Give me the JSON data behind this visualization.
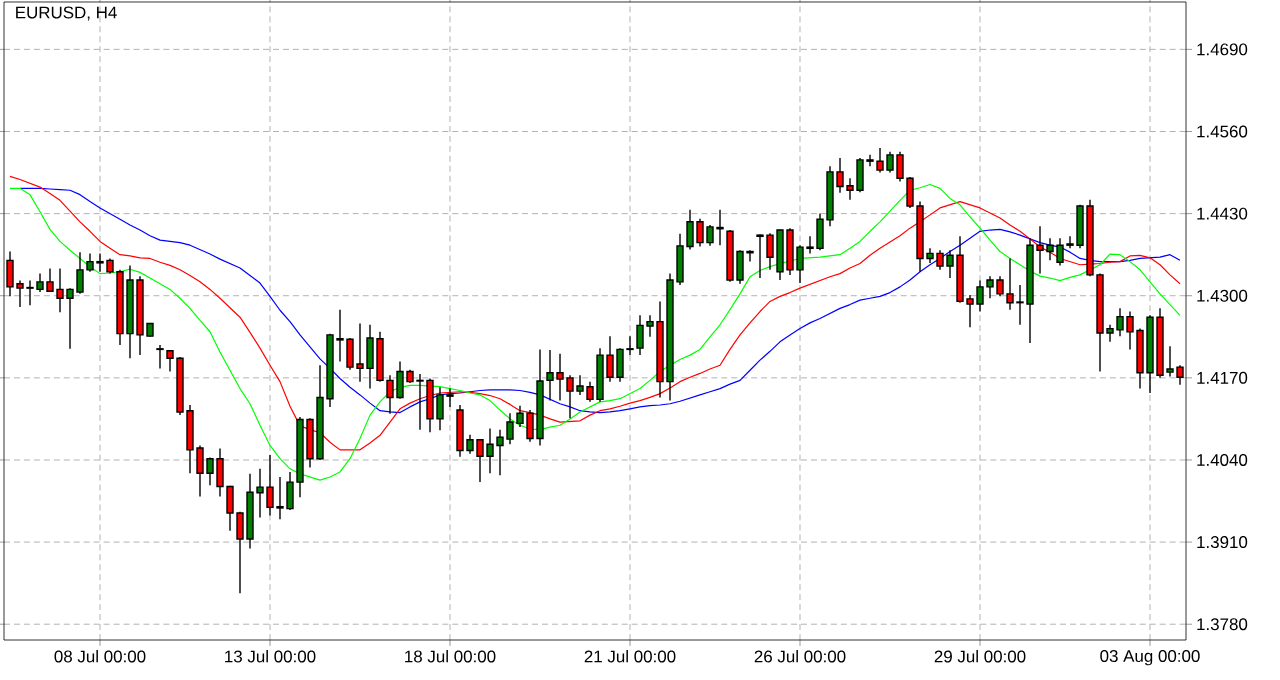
{
  "chart_data": {
    "type": "candlestick",
    "title": "EURUSD, H4",
    "categories": [
      null,
      null,
      null,
      null,
      null,
      null,
      null,
      null,
      null,
      "08 Jul 00:00",
      null,
      null,
      null,
      null,
      null,
      null,
      null,
      null,
      null,
      null,
      null,
      null,
      null,
      null,
      null,
      null,
      "13 Jul 00:00",
      null,
      null,
      null,
      null,
      null,
      null,
      null,
      null,
      null,
      null,
      null,
      null,
      null,
      null,
      null,
      null,
      null,
      "18 Jul 00:00",
      null,
      null,
      null,
      null,
      null,
      null,
      null,
      null,
      null,
      null,
      null,
      null,
      null,
      null,
      null,
      null,
      null,
      "21 Jul 00:00",
      null,
      null,
      null,
      null,
      null,
      null,
      null,
      null,
      null,
      null,
      null,
      null,
      null,
      null,
      null,
      null,
      "26 Jul 00:00",
      null,
      null,
      null,
      null,
      null,
      null,
      null,
      null,
      null,
      null,
      null,
      null,
      null,
      null,
      null,
      null,
      null,
      "29 Jul 00:00",
      null,
      null,
      null,
      null,
      null,
      null,
      null,
      null,
      null,
      null,
      null,
      null,
      null,
      null,
      null,
      null,
      "03 Aug 00:00",
      null,
      null,
      null
    ],
    "ohlc": [
      [
        1.4356,
        1.437,
        1.4299,
        1.4314
      ],
      [
        1.4319,
        1.4324,
        1.4282,
        1.4312
      ],
      [
        1.4312,
        1.4324,
        1.4285,
        1.4313
      ],
      [
        1.431,
        1.4335,
        1.4306,
        1.4322
      ],
      [
        1.4322,
        1.4343,
        1.4306,
        1.4307
      ],
      [
        1.431,
        1.4343,
        1.4274,
        1.4296
      ],
      [
        1.4296,
        1.4312,
        1.4216,
        1.431
      ],
      [
        1.4306,
        1.4369,
        1.4303,
        1.4341
      ],
      [
        1.4341,
        1.4367,
        1.4338,
        1.4354
      ],
      [
        1.4352,
        1.4367,
        1.4338,
        1.4354
      ],
      [
        1.4356,
        1.4359,
        1.4335,
        1.4338
      ],
      [
        1.4338,
        1.4341,
        1.4222,
        1.424
      ],
      [
        1.424,
        1.4348,
        1.4201,
        1.4325
      ],
      [
        1.4325,
        1.4331,
        1.4206,
        1.4238
      ],
      [
        1.4236,
        1.4257,
        1.4235,
        1.4256
      ],
      [
        1.4215,
        1.4222,
        1.4185,
        1.4216
      ],
      [
        1.4213,
        1.4214,
        1.418,
        1.4201
      ],
      [
        1.4201,
        1.4203,
        1.4111,
        1.4116
      ],
      [
        1.4118,
        1.4127,
        1.4019,
        1.4056
      ],
      [
        1.4059,
        1.4063,
        1.3982,
        1.4019
      ],
      [
        1.4019,
        1.4044,
        1.4,
        1.4042
      ],
      [
        1.4042,
        1.4058,
        1.3982,
        1.3998
      ],
      [
        1.3998,
        1.3999,
        1.3928,
        1.3956
      ],
      [
        1.3956,
        1.3958,
        1.3829,
        1.3915
      ],
      [
        1.3915,
        1.4018,
        1.39,
        1.3989
      ],
      [
        1.3988,
        1.4026,
        1.3949,
        1.3997
      ],
      [
        1.3997,
        1.4048,
        1.3952,
        1.3965
      ],
      [
        1.3964,
        1.4013,
        1.3946,
        1.3966
      ],
      [
        1.3963,
        1.4021,
        1.3961,
        1.4005
      ],
      [
        1.4005,
        1.4108,
        1.3981,
        1.4104
      ],
      [
        1.4104,
        1.4106,
        1.4028,
        1.4042
      ],
      [
        1.4042,
        1.419,
        1.404,
        1.4139
      ],
      [
        1.4137,
        1.424,
        1.4124,
        1.4238
      ],
      [
        1.423,
        1.4278,
        1.4196,
        1.4232
      ],
      [
        1.4231,
        1.4233,
        1.4183,
        1.4187
      ],
      [
        1.4192,
        1.4256,
        1.4164,
        1.4185
      ],
      [
        1.4185,
        1.4254,
        1.4153,
        1.4233
      ],
      [
        1.4232,
        1.4243,
        1.4164,
        1.4166
      ],
      [
        1.4166,
        1.4174,
        1.4113,
        1.4139
      ],
      [
        1.4139,
        1.4196,
        1.4137,
        1.418
      ],
      [
        1.418,
        1.4183,
        1.4162,
        1.4164
      ],
      [
        1.4165,
        1.4176,
        1.4088,
        1.4166
      ],
      [
        1.4166,
        1.4169,
        1.4084,
        1.4105
      ],
      [
        1.4105,
        1.4155,
        1.4087,
        1.4143
      ],
      [
        1.4141,
        1.4153,
        1.4124,
        1.4143
      ],
      [
        1.4119,
        1.4127,
        1.4045,
        1.4055
      ],
      [
        1.4055,
        1.408,
        1.405,
        1.4072
      ],
      [
        1.4072,
        1.4073,
        1.4005,
        1.4046
      ],
      [
        1.4046,
        1.409,
        1.4019,
        1.4065
      ],
      [
        1.4063,
        1.4088,
        1.4016,
        1.4076
      ],
      [
        1.4073,
        1.4114,
        1.4065,
        1.41
      ],
      [
        1.4098,
        1.4126,
        1.4092,
        1.4114
      ],
      [
        1.4114,
        1.4119,
        1.4069,
        1.4074
      ],
      [
        1.4074,
        1.4215,
        1.4063,
        1.4165
      ],
      [
        1.4166,
        1.4214,
        1.4134,
        1.4178
      ],
      [
        1.4178,
        1.4208,
        1.4134,
        1.4168
      ],
      [
        1.417,
        1.4174,
        1.4106,
        1.4149
      ],
      [
        1.4149,
        1.4174,
        1.4143,
        1.4157
      ],
      [
        1.4156,
        1.4164,
        1.4132,
        1.4136
      ],
      [
        1.4136,
        1.4217,
        1.4132,
        1.4206
      ],
      [
        1.4206,
        1.4236,
        1.4164,
        1.4171
      ],
      [
        1.4171,
        1.4217,
        1.4164,
        1.4215
      ],
      [
        1.4215,
        1.4236,
        1.4206,
        1.4216
      ],
      [
        1.4217,
        1.4269,
        1.4206,
        1.4253
      ],
      [
        1.4252,
        1.4269,
        1.4235,
        1.4259
      ],
      [
        1.4259,
        1.4291,
        1.4139,
        1.4164
      ],
      [
        1.4164,
        1.4335,
        1.4134,
        1.4325
      ],
      [
        1.4322,
        1.4398,
        1.4317,
        1.4379
      ],
      [
        1.4378,
        1.4436,
        1.4373,
        1.4417
      ],
      [
        1.4417,
        1.4422,
        1.4378,
        1.4384
      ],
      [
        1.4384,
        1.4412,
        1.4379,
        1.4409
      ],
      [
        1.4406,
        1.4436,
        1.438,
        1.4408
      ],
      [
        1.4402,
        1.4404,
        1.4322,
        1.4325
      ],
      [
        1.4325,
        1.4372,
        1.4319,
        1.437
      ],
      [
        1.4368,
        1.4372,
        1.4354,
        1.437
      ],
      [
        1.4394,
        1.4397,
        1.4328,
        1.4396
      ],
      [
        1.4396,
        1.4399,
        1.4341,
        1.4361
      ],
      [
        1.4338,
        1.4405,
        1.4325,
        1.4404
      ],
      [
        1.4404,
        1.4407,
        1.4333,
        1.4341
      ],
      [
        1.4341,
        1.438,
        1.432,
        1.4377
      ],
      [
        1.4375,
        1.4394,
        1.4367,
        1.4377
      ],
      [
        1.4375,
        1.443,
        1.4372,
        1.4421
      ],
      [
        1.442,
        1.4505,
        1.441,
        1.4496
      ],
      [
        1.4496,
        1.4518,
        1.4463,
        1.4473
      ],
      [
        1.4474,
        1.4486,
        1.4452,
        1.4467
      ],
      [
        1.4467,
        1.4518,
        1.4464,
        1.4515
      ],
      [
        1.4513,
        1.4523,
        1.4505,
        1.4515
      ],
      [
        1.4513,
        1.4534,
        1.4495,
        1.4499
      ],
      [
        1.4499,
        1.4528,
        1.4495,
        1.4523
      ],
      [
        1.4523,
        1.4528,
        1.4481,
        1.4486
      ],
      [
        1.4486,
        1.4488,
        1.4439,
        1.4442
      ],
      [
        1.4442,
        1.4449,
        1.4338,
        1.4359
      ],
      [
        1.4359,
        1.4375,
        1.4352,
        1.4367
      ],
      [
        1.4367,
        1.4372,
        1.4341,
        1.4347
      ],
      [
        1.4347,
        1.4372,
        1.4328,
        1.4364
      ],
      [
        1.4364,
        1.4394,
        1.4289,
        1.4291
      ],
      [
        1.4295,
        1.4301,
        1.425,
        1.4287
      ],
      [
        1.4287,
        1.4324,
        1.4275,
        1.4314
      ],
      [
        1.4314,
        1.4331,
        1.4296,
        1.4325
      ],
      [
        1.4325,
        1.4331,
        1.4299,
        1.4303
      ],
      [
        1.4303,
        1.4359,
        1.4278,
        1.4289
      ],
      [
        1.4289,
        1.4317,
        1.4254,
        1.429
      ],
      [
        1.4287,
        1.4391,
        1.4225,
        1.438
      ],
      [
        1.438,
        1.441,
        1.4335,
        1.4372
      ],
      [
        1.437,
        1.4391,
        1.4356,
        1.438
      ],
      [
        1.4353,
        1.4391,
        1.4348,
        1.438
      ],
      [
        1.438,
        1.4394,
        1.4375,
        1.4382
      ],
      [
        1.438,
        1.4444,
        1.4375,
        1.4442
      ],
      [
        1.4442,
        1.4452,
        1.4331,
        1.4333
      ],
      [
        1.4333,
        1.4335,
        1.418,
        1.4241
      ],
      [
        1.4241,
        1.4254,
        1.4227,
        1.4248
      ],
      [
        1.4246,
        1.428,
        1.4236,
        1.4267
      ],
      [
        1.4267,
        1.4275,
        1.4215,
        1.4243
      ],
      [
        1.4245,
        1.4248,
        1.4153,
        1.4178
      ],
      [
        1.4178,
        1.4269,
        1.4146,
        1.4266
      ],
      [
        1.4266,
        1.428,
        1.417,
        1.4174
      ],
      [
        1.4179,
        1.422,
        1.4172,
        1.4184
      ],
      [
        1.4187,
        1.419,
        1.4159,
        1.4171
      ]
    ],
    "series": [
      {
        "type": "line",
        "color": "#0000ff",
        "values": [
          null,
          1.447,
          1.447,
          1.447,
          1.4469,
          1.4468,
          1.4467,
          1.446,
          1.4449,
          1.4439,
          1.443,
          1.4421,
          1.4412,
          1.4404,
          1.4395,
          1.4388,
          1.4386,
          1.4384,
          1.438,
          1.4373,
          1.4366,
          1.4358,
          1.4351,
          1.4344,
          1.4332,
          1.432,
          1.4299,
          1.4277,
          1.4259,
          1.4238,
          1.4219,
          1.42,
          1.4185,
          1.4169,
          1.4155,
          1.4143,
          1.413,
          1.4118,
          1.4116,
          1.4115,
          1.4124,
          1.4132,
          1.4137,
          1.4143,
          1.4145,
          1.4146,
          1.4148,
          1.415,
          1.4151,
          1.4151,
          1.4151,
          1.415,
          1.4147,
          1.4143,
          1.4136,
          1.4129,
          1.4124,
          1.4118,
          1.4116,
          1.4115,
          1.4116,
          1.4118,
          1.4121,
          1.4124,
          1.4126,
          1.4127,
          1.4129,
          1.4133,
          1.4138,
          1.4143,
          1.4148,
          1.4153,
          1.416,
          1.4166,
          1.4182,
          1.4198,
          1.4212,
          1.4227,
          1.4238,
          1.4248,
          1.4257,
          1.4264,
          1.4272,
          1.428,
          1.4286,
          1.4293,
          1.4296,
          1.4299,
          1.4305,
          1.4314,
          1.4325,
          1.4338,
          1.4349,
          1.4359,
          1.437,
          1.438,
          1.4391,
          1.4402,
          1.4404,
          1.4405,
          1.4401,
          1.4396,
          1.439,
          1.4384,
          1.438,
          1.4377,
          1.4369,
          1.4359,
          1.4356,
          1.4354,
          1.4354,
          1.4354,
          1.4356,
          1.4359,
          1.436,
          1.4361,
          1.4365,
          1.4356
        ]
      },
      {
        "type": "line",
        "color": "#ff0000",
        "values": [
          1.4489,
          1.4484,
          1.4478,
          1.4472,
          1.4462,
          1.4451,
          1.4434,
          1.4417,
          1.4402,
          1.4386,
          1.4375,
          1.4365,
          1.4363,
          1.436,
          1.4359,
          1.4353,
          1.4348,
          1.4341,
          1.4332,
          1.4322,
          1.431,
          1.4296,
          1.4281,
          1.4266,
          1.4242,
          1.4217,
          1.419,
          1.4164,
          1.4125,
          1.4094,
          1.4088,
          1.4083,
          1.4068,
          1.4056,
          1.4056,
          1.4056,
          1.4067,
          1.4079,
          1.41,
          1.4121,
          1.413,
          1.4137,
          1.4142,
          1.4146,
          1.4147,
          1.4148,
          1.4147,
          1.4145,
          1.4142,
          1.4137,
          1.4128,
          1.4118,
          1.4115,
          1.4111,
          1.4105,
          1.41,
          1.4101,
          1.4102,
          1.4111,
          1.4118,
          1.4121,
          1.4125,
          1.413,
          1.4134,
          1.4139,
          1.4145,
          1.4154,
          1.4164,
          1.4171,
          1.4177,
          1.4184,
          1.419,
          1.4215,
          1.4238,
          1.4257,
          1.4275,
          1.4291,
          1.4299,
          1.4305,
          1.4312,
          1.4318,
          1.4324,
          1.433,
          1.4335,
          1.4344,
          1.4351,
          1.4364,
          1.4375,
          1.4385,
          1.4395,
          1.4407,
          1.4417,
          1.4428,
          1.4439,
          1.4444,
          1.4449,
          1.4444,
          1.4439,
          1.4431,
          1.4423,
          1.4412,
          1.4402,
          1.439,
          1.4377,
          1.4369,
          1.4359,
          1.4354,
          1.4349,
          1.435,
          1.4351,
          1.4353,
          1.4354,
          1.4363,
          1.4364,
          1.436,
          1.4349,
          1.4333,
          1.4319
        ]
      },
      {
        "type": "line",
        "color": "#00ff00",
        "values": [
          1.447,
          1.447,
          1.446,
          1.4433,
          1.4405,
          1.4386,
          1.4372,
          1.4359,
          1.4346,
          1.4335,
          1.4336,
          1.4338,
          1.4342,
          1.4337,
          1.4328,
          1.4319,
          1.431,
          1.4296,
          1.428,
          1.4261,
          1.4243,
          1.4211,
          1.4182,
          1.4153,
          1.4129,
          1.4095,
          1.4063,
          1.4042,
          1.4026,
          1.4018,
          1.4013,
          1.4008,
          1.4013,
          1.4021,
          1.4042,
          1.4074,
          1.4111,
          1.4132,
          1.4148,
          1.4155,
          1.4158,
          1.4158,
          1.4157,
          1.4156,
          1.4153,
          1.415,
          1.4146,
          1.4143,
          1.4134,
          1.4119,
          1.4105,
          1.4095,
          1.4089,
          1.4088,
          1.4092,
          1.4095,
          1.4105,
          1.4116,
          1.4124,
          1.4132,
          1.4134,
          1.4137,
          1.4145,
          1.4153,
          1.4166,
          1.418,
          1.419,
          1.4199,
          1.4206,
          1.4215,
          1.4235,
          1.4254,
          1.4278,
          1.4303,
          1.433,
          1.434,
          1.4346,
          1.4351,
          1.4355,
          1.4359,
          1.436,
          1.4361,
          1.4363,
          1.4365,
          1.4375,
          1.4386,
          1.4402,
          1.4417,
          1.4434,
          1.4451,
          1.4467,
          1.4471,
          1.4476,
          1.447,
          1.4454,
          1.4444,
          1.4425,
          1.4407,
          1.4388,
          1.437,
          1.4359,
          1.4349,
          1.4339,
          1.4331,
          1.4328,
          1.4324,
          1.4329,
          1.4333,
          1.4341,
          1.4349,
          1.4366,
          1.4365,
          1.4354,
          1.4341,
          1.4322,
          1.4303,
          1.4286,
          1.4269
        ]
      }
    ],
    "ylim": [
      1.3755,
      1.4765
    ],
    "yticks": [
      {
        "value": 1.378,
        "label": "1.3780"
      },
      {
        "value": 1.391,
        "label": "1.3910"
      },
      {
        "value": 1.404,
        "label": "1.4040"
      },
      {
        "value": 1.417,
        "label": "1.4170"
      },
      {
        "value": 1.43,
        "label": "1.4300"
      },
      {
        "value": 1.443,
        "label": "1.4430"
      },
      {
        "value": 1.456,
        "label": "1.4560"
      },
      {
        "value": 1.469,
        "label": "1.4690"
      }
    ],
    "grid": true
  }
}
